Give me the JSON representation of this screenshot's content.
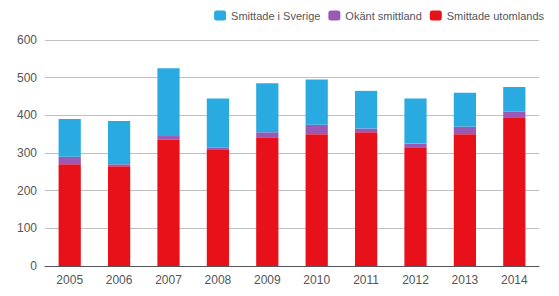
{
  "chart_data": {
    "type": "bar",
    "stacked": true,
    "categories": [
      "2005",
      "2006",
      "2007",
      "2008",
      "2009",
      "2010",
      "2011",
      "2012",
      "2013",
      "2014"
    ],
    "series": [
      {
        "name": "Smittade utomlands",
        "color": "#e8111a",
        "values": [
          270,
          265,
          335,
          310,
          340,
          350,
          355,
          315,
          350,
          395
        ]
      },
      {
        "name": "Okänt smittland",
        "color": "#9b59b6",
        "values": [
          20,
          5,
          10,
          5,
          15,
          25,
          10,
          10,
          20,
          15
        ]
      },
      {
        "name": "Smittade i Sverige",
        "color": "#29abe2",
        "values": [
          100,
          115,
          180,
          130,
          130,
          120,
          100,
          120,
          90,
          65
        ]
      }
    ],
    "ylim": [
      0,
      600
    ],
    "yticks": [
      0,
      100,
      200,
      300,
      400,
      500,
      600
    ],
    "grid": true,
    "legend": "upper right"
  }
}
